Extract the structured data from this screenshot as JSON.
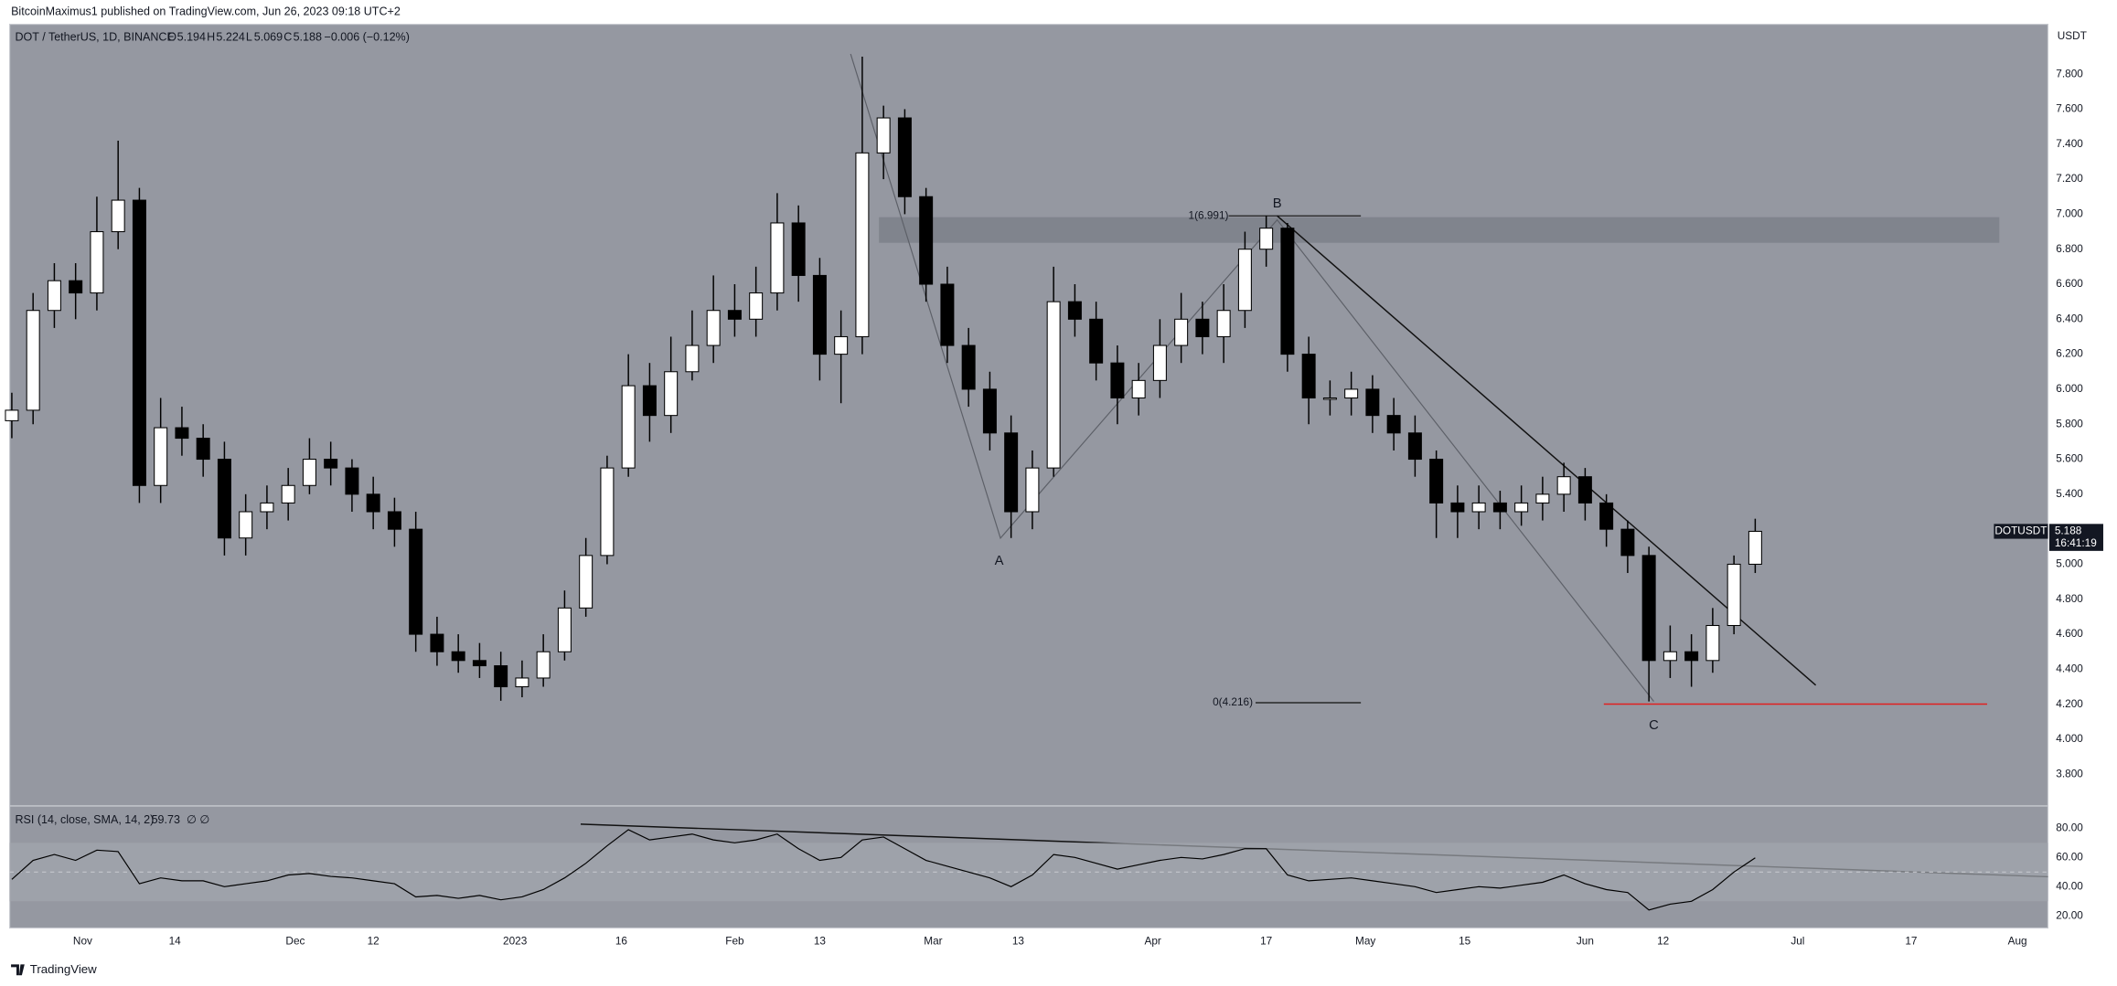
{
  "header": {
    "publisher": "BitcoinMaximus1 published on TradingView.com, Jun 26, 2023 09:18 UTC+2",
    "footer": "TradingView"
  },
  "chart_data": {
    "type": "candlestick",
    "symbol": "DOT / TetherUS, 1D, BINANCE",
    "legend": {
      "o_label": "O",
      "open": 5.194,
      "h_label": "H",
      "high": 5.224,
      "l_label": "L",
      "low": 5.069,
      "c_label": "C",
      "close": 5.188,
      "change": "−0.006 (−0.12%)"
    },
    "y_unit": "USDT",
    "price_tag": {
      "symbol": "DOTUSDT",
      "countdown": "16:41:19"
    },
    "up_color": "#ffffff",
    "down_color": "#000000",
    "x": [
      -10,
      -7,
      -4,
      -1,
      2,
      5,
      8,
      11,
      14,
      17,
      20,
      23,
      26,
      29,
      32,
      35,
      38,
      41,
      44,
      47,
      50,
      53,
      56,
      59,
      62,
      65,
      68,
      71,
      74,
      77,
      80,
      83,
      86,
      89,
      92,
      95,
      98,
      101,
      104,
      107,
      110,
      113,
      116,
      119,
      122,
      125,
      128,
      131,
      134,
      137,
      140,
      143,
      146,
      149,
      152,
      155,
      158,
      161,
      164,
      167,
      170,
      173,
      176,
      179,
      182,
      185,
      188,
      191,
      194,
      197,
      200,
      203,
      206,
      209,
      212,
      215,
      218,
      221,
      224,
      227,
      230,
      233,
      236
    ],
    "open": [
      5.82,
      5.88,
      6.45,
      6.62,
      6.55,
      6.9,
      7.08,
      5.45,
      5.78,
      5.72,
      5.6,
      5.15,
      5.3,
      5.35,
      5.45,
      5.6,
      5.55,
      5.4,
      5.3,
      5.2,
      4.6,
      4.5,
      4.45,
      4.42,
      4.3,
      4.35,
      4.5,
      4.75,
      5.05,
      5.55,
      6.02,
      5.85,
      6.1,
      6.25,
      6.45,
      6.4,
      6.55,
      6.95,
      6.65,
      6.2,
      6.3,
      7.35,
      7.55,
      7.1,
      6.6,
      6.25,
      6.0,
      5.75,
      5.3,
      5.55,
      6.5,
      6.4,
      6.15,
      5.95,
      6.05,
      6.25,
      6.4,
      6.3,
      6.45,
      6.8,
      6.92,
      6.2,
      5.95,
      5.95,
      6.0,
      5.85,
      5.75,
      5.6,
      5.35,
      5.3,
      5.35,
      5.3,
      5.35,
      5.4,
      5.5,
      5.35,
      5.2,
      5.05,
      4.45,
      4.5,
      4.45,
      4.65,
      5.0
    ],
    "high": [
      5.98,
      6.55,
      6.72,
      6.72,
      7.1,
      7.42,
      7.15,
      5.95,
      5.9,
      5.8,
      5.7,
      5.4,
      5.45,
      5.55,
      5.72,
      5.7,
      5.6,
      5.5,
      5.38,
      5.3,
      4.7,
      4.6,
      4.55,
      4.5,
      4.45,
      4.6,
      4.85,
      5.15,
      5.62,
      6.2,
      6.15,
      6.3,
      6.45,
      6.65,
      6.6,
      6.7,
      7.12,
      7.05,
      6.75,
      6.45,
      7.9,
      7.62,
      7.6,
      7.15,
      6.7,
      6.35,
      6.1,
      5.85,
      5.65,
      6.7,
      6.6,
      6.5,
      6.25,
      6.15,
      6.4,
      6.55,
      6.5,
      6.6,
      6.9,
      6.991,
      6.95,
      6.3,
      6.05,
      6.1,
      6.08,
      5.95,
      5.85,
      5.65,
      5.45,
      5.45,
      5.42,
      5.45,
      5.5,
      5.58,
      5.55,
      5.4,
      5.25,
      5.1,
      4.65,
      4.6,
      4.75,
      5.05,
      5.26
    ],
    "low": [
      5.72,
      5.8,
      6.35,
      6.4,
      6.45,
      6.8,
      5.35,
      5.35,
      5.62,
      5.5,
      5.05,
      5.05,
      5.2,
      5.25,
      5.4,
      5.45,
      5.3,
      5.2,
      5.1,
      4.5,
      4.42,
      4.38,
      4.35,
      4.22,
      4.24,
      4.3,
      4.45,
      4.7,
      5.0,
      5.5,
      5.7,
      5.75,
      6.05,
      6.15,
      6.3,
      6.3,
      6.45,
      6.5,
      6.05,
      5.92,
      6.2,
      7.2,
      7.0,
      6.5,
      6.15,
      5.9,
      5.65,
      5.15,
      5.2,
      5.5,
      6.3,
      6.05,
      5.8,
      5.85,
      5.95,
      6.15,
      6.2,
      6.15,
      6.35,
      6.7,
      6.1,
      5.8,
      5.85,
      5.85,
      5.75,
      5.65,
      5.5,
      5.15,
      5.15,
      5.2,
      5.2,
      5.22,
      5.25,
      5.3,
      5.25,
      5.1,
      4.95,
      4.216,
      4.35,
      4.3,
      4.38,
      4.6,
      4.95
    ],
    "close": [
      5.88,
      6.45,
      6.62,
      6.55,
      6.9,
      7.08,
      5.45,
      5.78,
      5.72,
      5.6,
      5.15,
      5.3,
      5.35,
      5.45,
      5.6,
      5.55,
      5.4,
      5.3,
      5.2,
      4.6,
      4.5,
      4.45,
      4.42,
      4.3,
      4.35,
      4.5,
      4.75,
      5.05,
      5.55,
      6.02,
      5.85,
      6.1,
      6.25,
      6.45,
      6.4,
      6.55,
      6.95,
      6.65,
      6.2,
      6.3,
      7.35,
      7.55,
      7.1,
      6.6,
      6.25,
      6.0,
      5.75,
      5.3,
      5.55,
      6.5,
      6.4,
      6.15,
      5.95,
      6.05,
      6.25,
      6.4,
      6.3,
      6.45,
      6.8,
      6.92,
      6.2,
      5.95,
      5.95,
      6.0,
      5.85,
      5.75,
      5.6,
      5.35,
      5.3,
      5.35,
      5.3,
      5.35,
      5.4,
      5.5,
      5.35,
      5.2,
      5.05,
      4.45,
      4.5,
      4.45,
      4.65,
      5.0,
      5.188
    ],
    "xlim": [
      -10.3,
      277.3
    ],
    "xticks": [
      {
        "value": 0,
        "label": "Nov"
      },
      {
        "value": 13,
        "label": "14"
      },
      {
        "value": 30,
        "label": "Dec"
      },
      {
        "value": 41,
        "label": "12"
      },
      {
        "value": 61,
        "label": "2023"
      },
      {
        "value": 76,
        "label": "16"
      },
      {
        "value": 92,
        "label": "Feb"
      },
      {
        "value": 104,
        "label": "13"
      },
      {
        "value": 120,
        "label": "Mar"
      },
      {
        "value": 132,
        "label": "13"
      },
      {
        "value": 151,
        "label": "Apr"
      },
      {
        "value": 167,
        "label": "17"
      },
      {
        "value": 181,
        "label": "May"
      },
      {
        "value": 195,
        "label": "15"
      },
      {
        "value": 212,
        "label": "Jun"
      },
      {
        "value": 223,
        "label": "12"
      },
      {
        "value": 242,
        "label": "Jul"
      },
      {
        "value": 258,
        "label": "17"
      },
      {
        "value": 273,
        "label": "Aug"
      }
    ],
    "ylim": [
      3.623,
      8.085
    ],
    "yticks": [
      {
        "value": 3.8,
        "label": "3.800"
      },
      {
        "value": 4.0,
        "label": "4.000"
      },
      {
        "value": 4.2,
        "label": "4.200"
      },
      {
        "value": 4.4,
        "label": "4.400"
      },
      {
        "value": 4.6,
        "label": "4.600"
      },
      {
        "value": 4.8,
        "label": "4.800"
      },
      {
        "value": 5.0,
        "label": "5.000"
      },
      {
        "value": 5.2,
        "label": "5.200"
      },
      {
        "value": 5.4,
        "label": "5.400"
      },
      {
        "value": 5.6,
        "label": "5.600"
      },
      {
        "value": 5.8,
        "label": "5.800"
      },
      {
        "value": 6.0,
        "label": "6.000"
      },
      {
        "value": 6.2,
        "label": "6.200"
      },
      {
        "value": 6.4,
        "label": "6.400"
      },
      {
        "value": 6.6,
        "label": "6.600"
      },
      {
        "value": 6.8,
        "label": "6.800"
      },
      {
        "value": 7.0,
        "label": "7.000"
      },
      {
        "value": 7.2,
        "label": "7.200"
      },
      {
        "value": 7.4,
        "label": "7.400"
      },
      {
        "value": 7.6,
        "label": "7.600"
      },
      {
        "value": 7.8,
        "label": "7.800"
      }
    ],
    "grid": false,
    "annotations": {
      "a": "A",
      "b": "B",
      "c": "C",
      "fib_1": "1(6.991)",
      "fib_0": "0(4.216)"
    },
    "rsi": {
      "type": "line",
      "title": "RSI (14, close, SMA, 14, 2)",
      "last": 59.73,
      "extra": "∅ ∅",
      "color": "#000000",
      "x": [
        -10,
        -7,
        -4,
        -1,
        2,
        5,
        8,
        11,
        14,
        17,
        20,
        23,
        26,
        29,
        32,
        35,
        38,
        41,
        44,
        47,
        50,
        53,
        56,
        59,
        62,
        65,
        68,
        71,
        74,
        77,
        80,
        83,
        86,
        89,
        92,
        95,
        98,
        101,
        104,
        107,
        110,
        113,
        116,
        119,
        122,
        125,
        128,
        131,
        134,
        137,
        140,
        143,
        146,
        149,
        152,
        155,
        158,
        161,
        164,
        167,
        170,
        173,
        176,
        179,
        182,
        185,
        188,
        191,
        194,
        197,
        200,
        203,
        206,
        209,
        212,
        215,
        218,
        221,
        224,
        227,
        230,
        233,
        236
      ],
      "values": [
        45,
        58,
        62,
        58,
        65,
        64,
        42,
        46,
        44,
        44,
        40,
        42,
        44,
        48,
        49,
        47,
        46,
        44,
        42,
        33,
        34,
        32,
        34,
        31,
        33,
        38,
        46,
        56,
        68,
        79,
        72,
        74,
        76,
        72,
        70,
        72,
        76,
        66,
        58,
        60,
        72,
        74,
        66,
        58,
        54,
        50,
        46,
        40,
        48,
        62,
        60,
        56,
        52,
        55,
        58,
        60,
        59,
        62,
        66,
        66,
        48,
        44,
        45,
        46,
        44,
        42,
        40,
        36,
        38,
        40,
        39,
        41,
        43,
        48,
        42,
        38,
        36,
        24,
        28,
        30,
        38,
        50,
        59.73
      ],
      "ylim": [
        11.7,
        94.8
      ],
      "yticks": [
        {
          "value": 20,
          "label": "20.00"
        },
        {
          "value": 40,
          "label": "40.00"
        },
        {
          "value": 60,
          "label": "60.00"
        },
        {
          "value": 80,
          "label": "80.00"
        }
      ],
      "band": [
        30,
        70
      ],
      "midline": 50
    }
  }
}
